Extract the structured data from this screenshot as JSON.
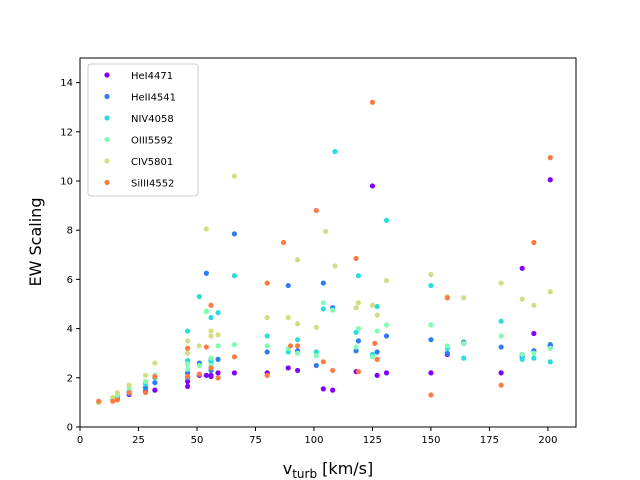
{
  "chart_data": {
    "type": "scatter",
    "title": "",
    "xlabel_main": "v",
    "xlabel_sub": "turb",
    "xlabel_unit": " [km/s]",
    "ylabel": "EW Scaling",
    "xlim": [
      0,
      212
    ],
    "ylim": [
      0,
      15
    ],
    "xticks": [
      0,
      25,
      50,
      75,
      100,
      125,
      150,
      175,
      200
    ],
    "yticks": [
      0,
      2,
      4,
      6,
      8,
      10,
      12,
      14
    ],
    "legend_position": "top-left",
    "series": [
      {
        "name": "HeI4471",
        "color": "#8000ff",
        "points": [
          [
            8,
            1.0
          ],
          [
            14,
            1.08
          ],
          [
            16,
            1.18
          ],
          [
            21,
            1.32
          ],
          [
            28,
            1.45
          ],
          [
            32,
            1.5
          ],
          [
            46,
            1.65
          ],
          [
            46,
            1.85
          ],
          [
            51,
            2.1
          ],
          [
            54,
            2.1
          ],
          [
            56,
            2.05
          ],
          [
            56,
            2.1
          ],
          [
            59,
            2.2
          ],
          [
            66,
            2.2
          ],
          [
            80,
            2.2
          ],
          [
            89,
            2.4
          ],
          [
            93,
            2.3
          ],
          [
            104,
            1.55
          ],
          [
            108,
            1.5
          ],
          [
            118,
            2.25
          ],
          [
            125,
            9.8
          ],
          [
            127,
            2.1
          ],
          [
            131,
            2.2
          ],
          [
            150,
            2.2
          ],
          [
            157,
            2.95
          ],
          [
            164,
            3.4
          ],
          [
            180,
            2.2
          ],
          [
            189,
            6.45
          ],
          [
            189,
            2.95
          ],
          [
            194,
            3.8
          ],
          [
            201,
            10.05
          ],
          [
            201,
            3.3
          ]
        ]
      },
      {
        "name": "HeII4541",
        "color": "#2c7ef7",
        "points": [
          [
            8,
            1.0
          ],
          [
            14,
            1.1
          ],
          [
            16,
            1.15
          ],
          [
            21,
            1.35
          ],
          [
            28,
            1.6
          ],
          [
            32,
            1.8
          ],
          [
            46,
            2.2
          ],
          [
            46,
            2.0
          ],
          [
            51,
            2.6
          ],
          [
            54,
            6.25
          ],
          [
            56,
            2.7
          ],
          [
            56,
            2.3
          ],
          [
            59,
            2.75
          ],
          [
            66,
            7.85
          ],
          [
            80,
            3.05
          ],
          [
            89,
            5.75
          ],
          [
            93,
            3.1
          ],
          [
            101,
            2.5
          ],
          [
            104,
            5.85
          ],
          [
            108,
            4.85
          ],
          [
            118,
            3.1
          ],
          [
            119,
            3.5
          ],
          [
            125,
            2.95
          ],
          [
            127,
            3.05
          ],
          [
            131,
            3.7
          ],
          [
            150,
            3.55
          ],
          [
            157,
            3.0
          ],
          [
            164,
            3.45
          ],
          [
            180,
            3.25
          ],
          [
            189,
            2.85
          ],
          [
            194,
            3.1
          ],
          [
            201,
            3.35
          ]
        ]
      },
      {
        "name": "NIV4058",
        "color": "#2adddd",
        "points": [
          [
            8,
            1.0
          ],
          [
            14,
            1.1
          ],
          [
            16,
            1.25
          ],
          [
            21,
            1.45
          ],
          [
            28,
            1.75
          ],
          [
            32,
            2.0
          ],
          [
            46,
            3.9
          ],
          [
            46,
            2.7
          ],
          [
            51,
            5.3
          ],
          [
            54,
            4.7
          ],
          [
            56,
            4.45
          ],
          [
            56,
            2.65
          ],
          [
            59,
            4.65
          ],
          [
            66,
            6.15
          ],
          [
            80,
            3.7
          ],
          [
            89,
            3.05
          ],
          [
            93,
            3.55
          ],
          [
            101,
            3.05
          ],
          [
            104,
            4.8
          ],
          [
            109,
            11.2
          ],
          [
            118,
            3.85
          ],
          [
            119,
            6.15
          ],
          [
            125,
            2.95
          ],
          [
            127,
            4.9
          ],
          [
            131,
            8.4
          ],
          [
            150,
            5.75
          ],
          [
            157,
            3.2
          ],
          [
            164,
            2.8
          ],
          [
            180,
            4.3
          ],
          [
            189,
            2.75
          ],
          [
            194,
            2.8
          ],
          [
            201,
            2.65
          ]
        ]
      },
      {
        "name": "OIII5592",
        "color": "#80ffb4",
        "points": [
          [
            8,
            1.0
          ],
          [
            14,
            1.15
          ],
          [
            16,
            1.3
          ],
          [
            21,
            1.55
          ],
          [
            28,
            1.85
          ],
          [
            32,
            2.1
          ],
          [
            46,
            2.55
          ],
          [
            46,
            2.35
          ],
          [
            51,
            2.5
          ],
          [
            54,
            4.7
          ],
          [
            56,
            2.8
          ],
          [
            56,
            2.5
          ],
          [
            59,
            3.3
          ],
          [
            66,
            3.35
          ],
          [
            80,
            3.3
          ],
          [
            89,
            3.2
          ],
          [
            93,
            3.0
          ],
          [
            101,
            2.9
          ],
          [
            104,
            5.05
          ],
          [
            108,
            4.75
          ],
          [
            118,
            3.25
          ],
          [
            119,
            4.0
          ],
          [
            125,
            2.85
          ],
          [
            127,
            3.9
          ],
          [
            131,
            4.15
          ],
          [
            150,
            4.15
          ],
          [
            157,
            3.3
          ],
          [
            164,
            3.4
          ],
          [
            180,
            3.7
          ],
          [
            189,
            2.95
          ],
          [
            194,
            3.0
          ],
          [
            201,
            3.2
          ]
        ]
      },
      {
        "name": "CIV5801",
        "color": "#d4dd80",
        "points": [
          [
            8,
            1.0
          ],
          [
            14,
            1.2
          ],
          [
            16,
            1.4
          ],
          [
            21,
            1.7
          ],
          [
            28,
            2.1
          ],
          [
            32,
            2.6
          ],
          [
            46,
            3.5
          ],
          [
            46,
            3.0
          ],
          [
            51,
            3.3
          ],
          [
            54,
            8.05
          ],
          [
            56,
            3.9
          ],
          [
            56,
            3.7
          ],
          [
            59,
            3.75
          ],
          [
            66,
            10.2
          ],
          [
            80,
            4.45
          ],
          [
            80,
            5.85
          ],
          [
            89,
            4.45
          ],
          [
            93,
            6.8
          ],
          [
            93,
            4.2
          ],
          [
            101,
            4.05
          ],
          [
            105,
            7.95
          ],
          [
            109,
            6.55
          ],
          [
            118,
            4.85
          ],
          [
            119,
            5.05
          ],
          [
            125,
            4.95
          ],
          [
            127,
            4.55
          ],
          [
            131,
            5.95
          ],
          [
            150,
            6.2
          ],
          [
            157,
            5.3
          ],
          [
            164,
            5.25
          ],
          [
            180,
            5.85
          ],
          [
            189,
            5.2
          ],
          [
            194,
            4.95
          ],
          [
            201,
            5.5
          ]
        ]
      },
      {
        "name": "SiIII4552",
        "color": "#ff7b41",
        "points": [
          [
            8,
            1.05
          ],
          [
            14,
            1.05
          ],
          [
            16,
            1.1
          ],
          [
            21,
            1.4
          ],
          [
            28,
            1.4
          ],
          [
            32,
            2.05
          ],
          [
            46,
            3.2
          ],
          [
            46,
            2.05
          ],
          [
            51,
            2.15
          ],
          [
            54,
            3.25
          ],
          [
            56,
            4.95
          ],
          [
            56,
            2.4
          ],
          [
            59,
            2.0
          ],
          [
            66,
            2.85
          ],
          [
            80,
            2.1
          ],
          [
            80,
            5.85
          ],
          [
            87,
            7.5
          ],
          [
            90,
            3.3
          ],
          [
            93,
            3.3
          ],
          [
            101,
            8.8
          ],
          [
            104,
            2.65
          ],
          [
            108,
            2.3
          ],
          [
            118,
            6.85
          ],
          [
            119,
            2.25
          ],
          [
            125,
            13.2
          ],
          [
            126,
            3.4
          ],
          [
            127,
            2.75
          ],
          [
            150,
            1.3
          ],
          [
            157,
            5.25
          ],
          [
            180,
            1.7
          ],
          [
            194,
            7.5
          ],
          [
            201,
            10.95
          ]
        ]
      }
    ]
  }
}
